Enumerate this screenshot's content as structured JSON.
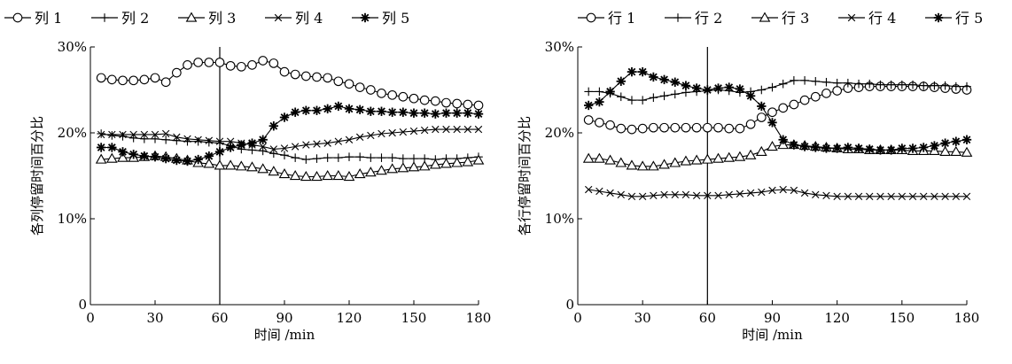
{
  "chart_data": [
    {
      "type": "line",
      "title": "",
      "xlabel": "时间 /min",
      "ylabel": "各列停留时间百分比",
      "xlim": [
        0,
        180
      ],
      "ylim": [
        0,
        30
      ],
      "xticks": [
        0,
        30,
        60,
        90,
        120,
        150,
        180
      ],
      "yticks": [
        0,
        10,
        20,
        30
      ],
      "ytick_labels": [
        "0",
        "10%",
        "20%",
        "30%"
      ],
      "vline_x": 60,
      "legend_position": "top",
      "x": [
        5,
        10,
        15,
        20,
        25,
        30,
        35,
        40,
        45,
        50,
        55,
        60,
        65,
        70,
        75,
        80,
        85,
        90,
        95,
        100,
        105,
        110,
        115,
        120,
        125,
        130,
        135,
        140,
        145,
        150,
        155,
        160,
        165,
        170,
        175,
        180
      ],
      "series": [
        {
          "name": "列 1",
          "marker": "circle",
          "values": [
            26.4,
            26.2,
            26.1,
            26.1,
            26.2,
            26.4,
            25.9,
            27.0,
            27.9,
            28.2,
            28.2,
            28.2,
            27.8,
            27.7,
            27.9,
            28.4,
            28.1,
            27.1,
            26.8,
            26.6,
            26.5,
            26.4,
            26.0,
            25.7,
            25.3,
            25.0,
            24.6,
            24.4,
            24.2,
            24.0,
            23.8,
            23.7,
            23.5,
            23.4,
            23.3,
            23.2
          ]
        },
        {
          "name": "列 2",
          "marker": "plus",
          "values": [
            19.9,
            19.7,
            19.6,
            19.4,
            19.3,
            19.3,
            19.2,
            19.1,
            19.0,
            19.0,
            18.9,
            18.8,
            18.5,
            18.1,
            18.0,
            17.9,
            17.6,
            17.4,
            17.1,
            16.9,
            17.0,
            17.1,
            17.1,
            17.2,
            17.2,
            17.1,
            17.1,
            17.1,
            17.0,
            17.0,
            17.0,
            16.9,
            17.0,
            17.0,
            17.1,
            17.2
          ]
        },
        {
          "name": "列 3",
          "marker": "triangle",
          "values": [
            16.9,
            17.0,
            17.1,
            17.1,
            17.2,
            17.3,
            17.2,
            17.0,
            16.8,
            16.5,
            16.4,
            16.2,
            16.2,
            16.1,
            16.0,
            15.8,
            15.5,
            15.2,
            15.0,
            14.9,
            14.9,
            15.0,
            15.0,
            14.9,
            15.2,
            15.4,
            15.6,
            15.8,
            15.9,
            16.0,
            16.1,
            16.3,
            16.4,
            16.5,
            16.6,
            16.8
          ]
        },
        {
          "name": "列 4",
          "marker": "x",
          "values": [
            19.8,
            19.8,
            19.8,
            19.8,
            19.8,
            19.8,
            19.9,
            19.5,
            19.3,
            19.2,
            19.1,
            19.0,
            19.0,
            18.8,
            18.6,
            18.4,
            18.1,
            18.2,
            18.4,
            18.6,
            18.7,
            18.8,
            19.0,
            19.2,
            19.5,
            19.7,
            19.9,
            20.0,
            20.1,
            20.2,
            20.3,
            20.4,
            20.4,
            20.4,
            20.4,
            20.4
          ]
        },
        {
          "name": "列 5",
          "marker": "star",
          "values": [
            18.3,
            18.3,
            17.8,
            17.5,
            17.3,
            17.2,
            17.0,
            16.8,
            16.7,
            16.9,
            17.3,
            17.8,
            18.3,
            18.6,
            18.8,
            19.2,
            20.8,
            21.8,
            22.4,
            22.6,
            22.6,
            22.8,
            23.1,
            22.8,
            22.7,
            22.5,
            22.5,
            22.4,
            22.4,
            22.3,
            22.3,
            22.2,
            22.3,
            22.3,
            22.3,
            22.2
          ]
        }
      ]
    },
    {
      "type": "line",
      "title": "",
      "xlabel": "时间 /min",
      "ylabel": "各行停留时间百分比",
      "xlim": [
        0,
        180
      ],
      "ylim": [
        0,
        30
      ],
      "xticks": [
        0,
        30,
        60,
        90,
        120,
        150,
        180
      ],
      "yticks": [
        0,
        10,
        20,
        30
      ],
      "ytick_labels": [
        "0",
        "10%",
        "20%",
        "30%"
      ],
      "vline_x": 60,
      "legend_position": "top",
      "x": [
        5,
        10,
        15,
        20,
        25,
        30,
        35,
        40,
        45,
        50,
        55,
        60,
        65,
        70,
        75,
        80,
        85,
        90,
        95,
        100,
        105,
        110,
        115,
        120,
        125,
        130,
        135,
        140,
        145,
        150,
        155,
        160,
        165,
        170,
        175,
        180
      ],
      "series": [
        {
          "name": "行 1",
          "marker": "circle",
          "values": [
            21.5,
            21.2,
            20.9,
            20.5,
            20.4,
            20.5,
            20.6,
            20.6,
            20.6,
            20.6,
            20.6,
            20.6,
            20.6,
            20.5,
            20.5,
            21.0,
            21.8,
            22.4,
            22.9,
            23.3,
            23.8,
            24.2,
            24.6,
            24.9,
            25.2,
            25.3,
            25.4,
            25.4,
            25.4,
            25.4,
            25.4,
            25.4,
            25.3,
            25.2,
            25.1,
            25.0
          ]
        },
        {
          "name": "行 2",
          "marker": "plus",
          "values": [
            24.8,
            24.8,
            24.6,
            24.2,
            23.8,
            23.8,
            24.1,
            24.3,
            24.5,
            24.7,
            24.8,
            24.9,
            25.0,
            24.9,
            24.7,
            24.8,
            25.0,
            25.3,
            25.7,
            26.1,
            26.1,
            26.0,
            25.9,
            25.8,
            25.8,
            25.7,
            25.7,
            25.6,
            25.6,
            25.6,
            25.6,
            25.5,
            25.5,
            25.5,
            25.4,
            25.4
          ]
        },
        {
          "name": "行 3",
          "marker": "triangle",
          "values": [
            17.0,
            17.0,
            16.8,
            16.5,
            16.2,
            16.1,
            16.1,
            16.3,
            16.5,
            16.7,
            16.8,
            16.9,
            17.0,
            17.1,
            17.2,
            17.4,
            17.8,
            18.4,
            18.6,
            18.6,
            18.5,
            18.4,
            18.3,
            18.2,
            18.1,
            18.1,
            18.0,
            18.0,
            18.0,
            18.0,
            17.9,
            17.9,
            17.9,
            17.8,
            17.8,
            17.7
          ]
        },
        {
          "name": "行 4",
          "marker": "x",
          "values": [
            13.4,
            13.2,
            13.0,
            12.8,
            12.6,
            12.6,
            12.7,
            12.8,
            12.8,
            12.8,
            12.7,
            12.7,
            12.7,
            12.8,
            12.9,
            13.0,
            13.1,
            13.3,
            13.4,
            13.3,
            13.0,
            12.8,
            12.7,
            12.6,
            12.6,
            12.6,
            12.6,
            12.6,
            12.6,
            12.6,
            12.6,
            12.6,
            12.6,
            12.6,
            12.6,
            12.6
          ]
        },
        {
          "name": "行 5",
          "marker": "star",
          "values": [
            23.2,
            23.6,
            24.8,
            26.0,
            27.1,
            27.1,
            26.5,
            26.2,
            25.9,
            25.5,
            25.2,
            25.0,
            25.2,
            25.3,
            25.1,
            24.3,
            23.1,
            21.2,
            19.2,
            18.6,
            18.4,
            18.3,
            18.2,
            18.2,
            18.3,
            18.2,
            18.1,
            18.0,
            18.0,
            18.2,
            18.2,
            18.3,
            18.5,
            18.8,
            19.0,
            19.2
          ]
        }
      ]
    }
  ]
}
